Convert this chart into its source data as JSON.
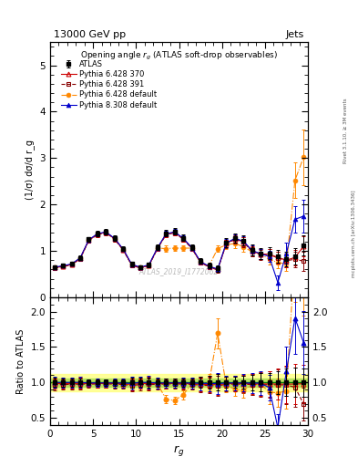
{
  "title_top": "13000 GeV pp",
  "title_right": "Jets",
  "plot_title": "Opening angle $r_g$ (ATLAS soft-drop observables)",
  "xlabel": "r_g",
  "ylabel_main": "(1/σ) dσ/d r_g",
  "ylabel_ratio": "Ratio to ATLAS",
  "watermark": "ATLAS_2019_I1772062",
  "rivet_text": "Rivet 3.1.10, ≥ 3M events",
  "arxiv_text": "mcplots.cern.ch [arXiv:1306.3436]",
  "xlim": [
    0,
    30
  ],
  "ylim_main": [
    0,
    5.5
  ],
  "ylim_ratio": [
    0.4,
    2.2
  ],
  "ratio_yticks": [
    0.5,
    1.0,
    1.5,
    2.0
  ],
  "main_yticks": [
    0,
    1,
    2,
    3,
    4,
    5
  ],
  "atlas_x": [
    0.5,
    1.5,
    2.5,
    3.5,
    4.5,
    5.5,
    6.5,
    7.5,
    8.5,
    9.5,
    10.5,
    11.5,
    12.5,
    13.5,
    14.5,
    15.5,
    16.5,
    17.5,
    18.5,
    19.5,
    20.5,
    21.5,
    22.5,
    23.5,
    24.5,
    25.5,
    26.5,
    27.5,
    28.5,
    29.5
  ],
  "atlas_y": [
    0.65,
    0.68,
    0.72,
    0.85,
    1.25,
    1.38,
    1.42,
    1.28,
    1.05,
    0.72,
    0.65,
    0.7,
    1.08,
    1.38,
    1.42,
    1.28,
    1.08,
    0.78,
    0.68,
    0.62,
    1.18,
    1.28,
    1.22,
    1.02,
    0.95,
    0.95,
    0.88,
    0.82,
    0.88,
    1.12
  ],
  "atlas_yerr": [
    0.04,
    0.04,
    0.04,
    0.05,
    0.05,
    0.06,
    0.06,
    0.06,
    0.05,
    0.05,
    0.04,
    0.05,
    0.06,
    0.07,
    0.07,
    0.07,
    0.06,
    0.06,
    0.06,
    0.07,
    0.09,
    0.1,
    0.11,
    0.11,
    0.12,
    0.13,
    0.14,
    0.16,
    0.18,
    0.22
  ],
  "py6_370_y": [
    0.64,
    0.67,
    0.71,
    0.84,
    1.23,
    1.36,
    1.4,
    1.26,
    1.03,
    0.7,
    0.64,
    0.69,
    1.06,
    1.36,
    1.4,
    1.26,
    1.06,
    0.76,
    0.66,
    0.6,
    1.16,
    1.26,
    1.2,
    1.0,
    0.93,
    0.93,
    0.86,
    0.8,
    0.86,
    1.1
  ],
  "py6_370_yerr": [
    0.03,
    0.03,
    0.03,
    0.04,
    0.04,
    0.05,
    0.05,
    0.05,
    0.04,
    0.04,
    0.03,
    0.04,
    0.05,
    0.06,
    0.06,
    0.06,
    0.05,
    0.05,
    0.05,
    0.06,
    0.08,
    0.09,
    0.1,
    0.1,
    0.11,
    0.12,
    0.13,
    0.15,
    0.17,
    0.21
  ],
  "py6_391_y": [
    0.63,
    0.66,
    0.7,
    0.83,
    1.22,
    1.35,
    1.39,
    1.25,
    1.02,
    0.69,
    0.63,
    0.68,
    1.05,
    1.35,
    1.39,
    1.25,
    1.05,
    0.75,
    0.65,
    0.59,
    1.15,
    1.25,
    1.19,
    0.99,
    0.92,
    0.92,
    0.85,
    0.79,
    0.82,
    0.78
  ],
  "py6_391_yerr": [
    0.03,
    0.03,
    0.03,
    0.04,
    0.04,
    0.05,
    0.05,
    0.05,
    0.04,
    0.04,
    0.03,
    0.04,
    0.05,
    0.06,
    0.06,
    0.06,
    0.05,
    0.05,
    0.05,
    0.06,
    0.08,
    0.09,
    0.1,
    0.1,
    0.11,
    0.12,
    0.13,
    0.15,
    0.17,
    0.21
  ],
  "py6_def_y": [
    0.64,
    0.67,
    0.71,
    0.85,
    1.23,
    1.36,
    1.4,
    1.26,
    1.03,
    0.7,
    0.64,
    0.69,
    1.06,
    1.05,
    1.06,
    1.06,
    1.06,
    0.76,
    0.68,
    1.05,
    1.13,
    1.16,
    1.09,
    0.98,
    0.93,
    0.82,
    0.75,
    0.72,
    2.52,
    3.02
  ],
  "py6_def_yerr": [
    0.03,
    0.03,
    0.03,
    0.04,
    0.04,
    0.05,
    0.05,
    0.05,
    0.04,
    0.04,
    0.03,
    0.04,
    0.05,
    0.06,
    0.06,
    0.06,
    0.05,
    0.05,
    0.05,
    0.06,
    0.08,
    0.09,
    0.1,
    0.1,
    0.11,
    0.12,
    0.13,
    0.15,
    0.38,
    0.6
  ],
  "py8_def_y": [
    0.65,
    0.68,
    0.72,
    0.85,
    1.24,
    1.37,
    1.41,
    1.27,
    1.04,
    0.71,
    0.65,
    0.7,
    1.07,
    1.37,
    1.41,
    1.27,
    1.07,
    0.77,
    0.67,
    0.61,
    1.17,
    1.27,
    1.21,
    1.01,
    0.94,
    0.88,
    0.32,
    0.95,
    1.68,
    1.75
  ],
  "py8_def_yerr": [
    0.03,
    0.03,
    0.03,
    0.04,
    0.04,
    0.05,
    0.05,
    0.05,
    0.04,
    0.04,
    0.03,
    0.04,
    0.05,
    0.06,
    0.06,
    0.06,
    0.05,
    0.05,
    0.05,
    0.06,
    0.08,
    0.09,
    0.1,
    0.1,
    0.11,
    0.12,
    0.16,
    0.22,
    0.28,
    0.35
  ],
  "color_atlas": "#000000",
  "color_py6_370": "#cc0000",
  "color_py6_391": "#880000",
  "color_py6_def": "#ff8800",
  "color_py8_def": "#0000cc",
  "legend_labels": [
    "ATLAS",
    "Pythia 6.428 370",
    "Pythia 6.428 391",
    "Pythia 6.428 default",
    "Pythia 8.308 default"
  ]
}
